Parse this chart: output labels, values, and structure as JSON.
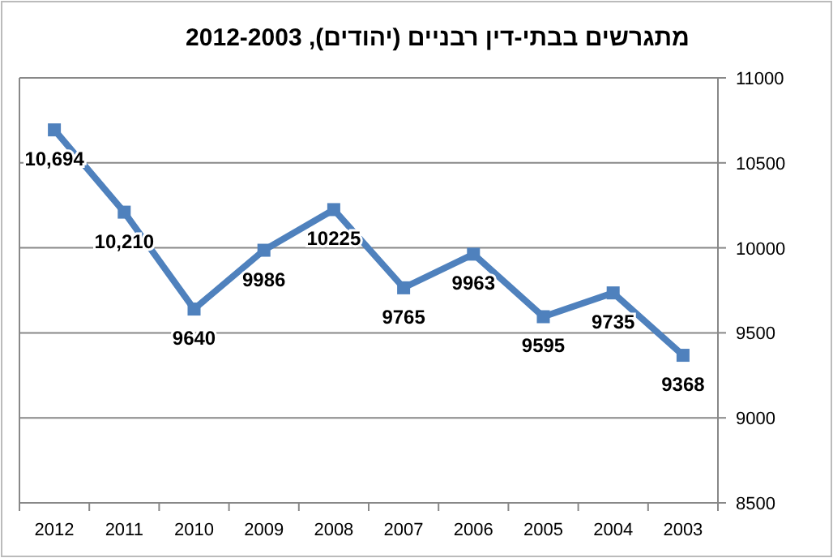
{
  "chart_data": {
    "type": "line",
    "title": "מתגרשים בבתי-דין רבניים (יהודים), 2012-2003",
    "categories": [
      "2012",
      "2011",
      "2010",
      "2009",
      "2008",
      "2007",
      "2006",
      "2005",
      "2004",
      "2003"
    ],
    "series": [
      {
        "color": "#4f81bd",
        "values": [
          10694,
          10210,
          9640,
          9986,
          10225,
          9765,
          9963,
          9595,
          9735,
          9368
        ],
        "value_labels": [
          "10,694",
          "10,210",
          "9640",
          "9986",
          "10225",
          "9765",
          "9963",
          "9595",
          "9735",
          "9368"
        ]
      }
    ],
    "ylim": [
      8500,
      11000
    ],
    "yticks": [
      8500,
      9000,
      9500,
      10000,
      10500,
      11000
    ],
    "grid": "y",
    "marker": "square",
    "line_style": "solid"
  }
}
